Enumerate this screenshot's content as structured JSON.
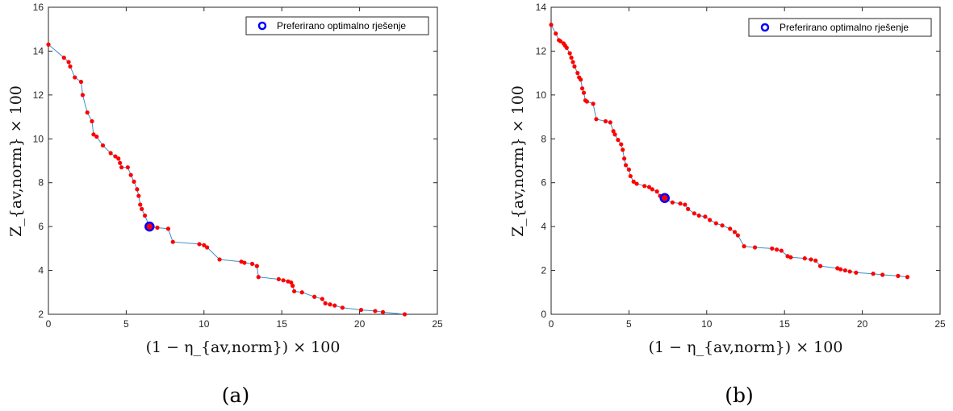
{
  "panels": [
    {
      "caption": "(a)",
      "xlabel": "(1 − η_{av,norm}) × 100",
      "ylabel": "Z_{av,norm} × 100",
      "legend": "Preferirano optimalno rješenje",
      "xticks": [
        "0",
        "5",
        "10",
        "15",
        "20",
        "25"
      ],
      "yticks": [
        "2",
        "4",
        "6",
        "8",
        "10",
        "12",
        "14",
        "16"
      ]
    },
    {
      "caption": "(b)",
      "xlabel": "(1 − η_{av,norm}) × 100",
      "ylabel": "Z_{av,norm} × 100",
      "legend": "Preferirano optimalno rješenje",
      "xticks": [
        "0",
        "5",
        "10",
        "15",
        "20",
        "25"
      ],
      "yticks": [
        "0",
        "2",
        "4",
        "6",
        "8",
        "10",
        "12",
        "14"
      ]
    }
  ],
  "colors": {
    "line": "#3a8fc7",
    "point": "#ff0000",
    "preferred": "#0000ff",
    "axis": "#262626"
  },
  "chart_data": [
    {
      "type": "line",
      "xlim": [
        0,
        25
      ],
      "ylim": [
        2,
        16
      ],
      "xticks": [
        0,
        5,
        10,
        15,
        20,
        25
      ],
      "yticks": [
        2,
        4,
        6,
        8,
        10,
        12,
        14,
        16
      ],
      "grid": false,
      "legend_position": "top-right",
      "series": [
        {
          "marker": "dot",
          "x": [
            0.0,
            1.0,
            1.3,
            1.4,
            1.7,
            2.1,
            2.2,
            2.5,
            2.8,
            2.9,
            3.1,
            3.5,
            4.0,
            4.3,
            4.5,
            4.6,
            4.7,
            5.1,
            5.3,
            5.5,
            5.7,
            5.8,
            5.9,
            6.0,
            6.2,
            6.5,
            7.0,
            7.7,
            8.0,
            9.7,
            10.0,
            10.2,
            11.0,
            12.4,
            12.6,
            13.1,
            13.4,
            13.5,
            14.8,
            15.1,
            15.4,
            15.6,
            15.7,
            15.8,
            16.3,
            17.1,
            17.6,
            17.8,
            18.1,
            18.4,
            18.9,
            20.1,
            21.0,
            21.5,
            22.9
          ],
          "y": [
            14.3,
            13.7,
            13.5,
            13.3,
            12.8,
            12.6,
            12.0,
            11.2,
            10.8,
            10.2,
            10.1,
            9.7,
            9.35,
            9.2,
            9.1,
            8.9,
            8.7,
            8.7,
            8.35,
            8.05,
            7.7,
            7.4,
            7.0,
            6.8,
            6.5,
            6.0,
            5.95,
            5.9,
            5.3,
            5.2,
            5.15,
            5.05,
            4.5,
            4.4,
            4.35,
            4.3,
            4.2,
            3.7,
            3.6,
            3.55,
            3.5,
            3.45,
            3.3,
            3.05,
            3.0,
            2.8,
            2.7,
            2.5,
            2.45,
            2.4,
            2.3,
            2.2,
            2.15,
            2.1,
            2.0
          ]
        }
      ],
      "preferred": {
        "x": 6.5,
        "y": 6.0
      }
    },
    {
      "type": "line",
      "xlim": [
        0,
        25
      ],
      "ylim": [
        0,
        14
      ],
      "xticks": [
        0,
        5,
        10,
        15,
        20,
        25
      ],
      "yticks": [
        0,
        2,
        4,
        6,
        8,
        10,
        12,
        14
      ],
      "grid": false,
      "legend_position": "top-right",
      "series": [
        {
          "marker": "dot",
          "x": [
            0.0,
            0.3,
            0.5,
            0.6,
            0.8,
            0.9,
            1.0,
            1.2,
            1.3,
            1.4,
            1.5,
            1.7,
            1.8,
            1.9,
            2.0,
            2.1,
            2.2,
            2.3,
            2.7,
            2.9,
            3.5,
            3.8,
            4.0,
            4.1,
            4.3,
            4.5,
            4.6,
            4.7,
            4.8,
            5.0,
            5.1,
            5.3,
            5.5,
            6.0,
            6.3,
            6.5,
            6.8,
            7.0,
            7.3,
            7.8,
            8.3,
            8.6,
            8.8,
            9.2,
            9.5,
            9.9,
            10.2,
            10.6,
            11.0,
            11.5,
            11.8,
            12.0,
            12.4,
            13.1,
            14.2,
            14.5,
            14.8,
            15.2,
            15.4,
            16.3,
            16.7,
            17.0,
            17.3,
            18.4,
            18.6,
            18.9,
            19.2,
            19.6,
            20.7,
            21.3,
            22.3,
            22.9
          ],
          "y": [
            13.2,
            12.8,
            12.5,
            12.45,
            12.35,
            12.25,
            12.15,
            11.9,
            11.7,
            11.5,
            11.3,
            11.0,
            10.8,
            10.7,
            10.3,
            10.1,
            9.75,
            9.7,
            9.6,
            8.9,
            8.8,
            8.75,
            8.35,
            8.2,
            7.95,
            7.75,
            7.5,
            7.1,
            6.8,
            6.6,
            6.3,
            6.05,
            5.95,
            5.85,
            5.8,
            5.7,
            5.6,
            5.4,
            5.25,
            5.1,
            5.05,
            5.0,
            4.8,
            4.6,
            4.5,
            4.45,
            4.3,
            4.15,
            4.05,
            3.9,
            3.75,
            3.6,
            3.1,
            3.05,
            3.0,
            2.95,
            2.9,
            2.65,
            2.6,
            2.55,
            2.5,
            2.45,
            2.2,
            2.1,
            2.05,
            2.0,
            1.95,
            1.9,
            1.85,
            1.8,
            1.75,
            1.7
          ],
          "note": ""
        }
      ],
      "preferred": {
        "x": 7.3,
        "y": 5.3
      }
    }
  ]
}
